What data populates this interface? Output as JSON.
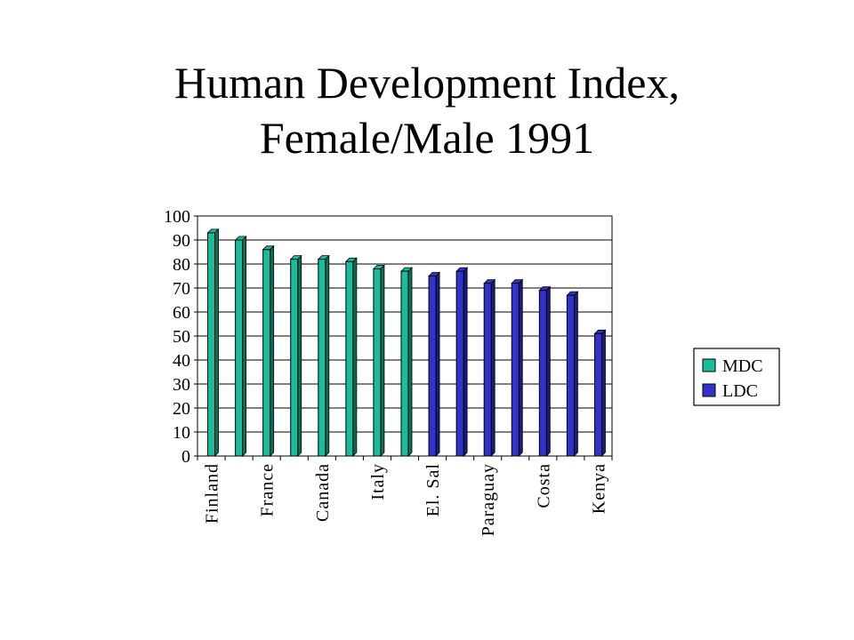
{
  "title": {
    "line1": "Human Development Index,",
    "line2": "Female/Male 1991"
  },
  "colors": {
    "mdc": "#1abc9c",
    "mdc_side": "#0e6e5a",
    "ldc": "#3333cc",
    "ldc_side": "#1a1a80",
    "grid": "#000000",
    "plot_bg": "#ffffff"
  },
  "chart_data": {
    "type": "bar",
    "title": "Human Development Index, Female/Male 1991",
    "xlabel": "",
    "ylabel": "",
    "ylim": [
      0,
      100
    ],
    "yticks": [
      0,
      10,
      20,
      30,
      40,
      50,
      60,
      70,
      80,
      90,
      100
    ],
    "grid": true,
    "legend_position": "right",
    "legend": [
      {
        "label": "MDC",
        "group": "mdc"
      },
      {
        "label": "LDC",
        "group": "ldc"
      }
    ],
    "categories": [
      "Finland",
      "",
      "France",
      "",
      "Canada",
      "",
      "Italy",
      "",
      "El. Sal",
      "",
      "Paraguay",
      "",
      "Costa",
      "",
      "Kenya"
    ],
    "values": [
      93,
      90,
      86,
      82,
      82,
      81,
      78,
      77,
      75,
      77,
      72,
      72,
      69,
      67,
      51
    ],
    "groups": [
      "mdc",
      "mdc",
      "mdc",
      "mdc",
      "mdc",
      "mdc",
      "mdc",
      "mdc",
      "ldc",
      "ldc",
      "ldc",
      "ldc",
      "ldc",
      "ldc",
      "ldc"
    ]
  }
}
